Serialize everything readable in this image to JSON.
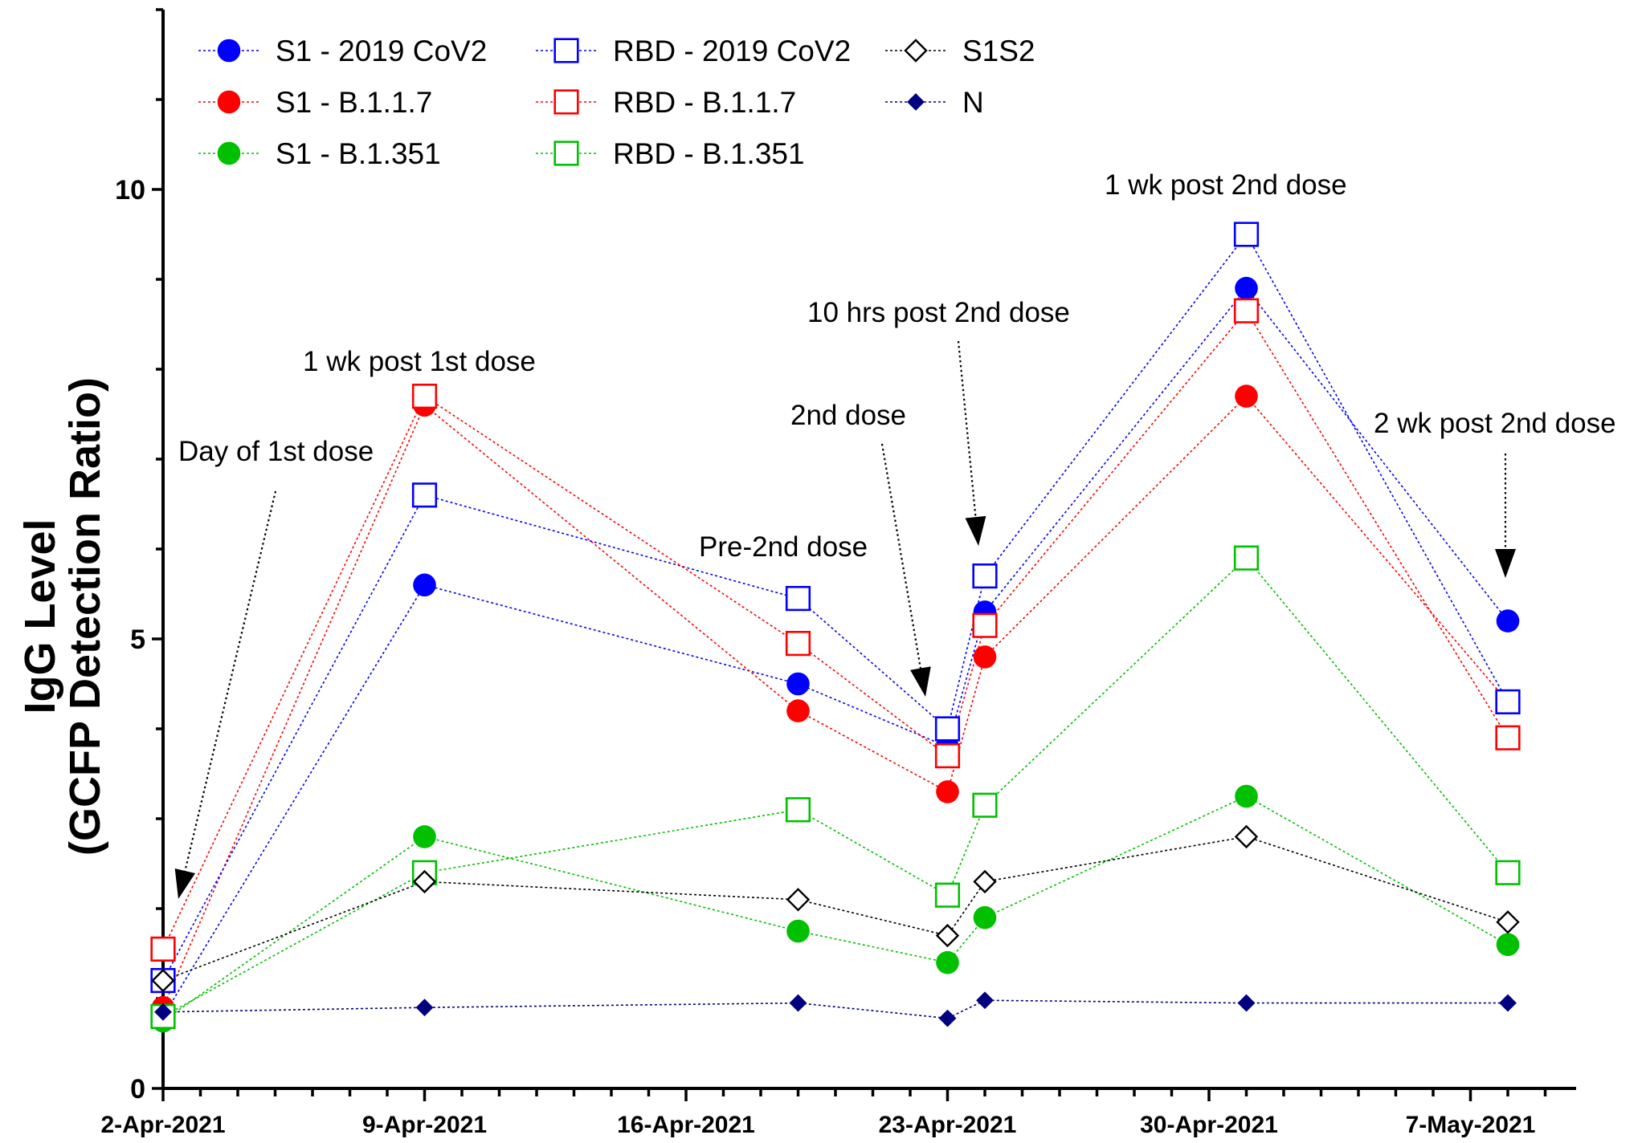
{
  "chart_data": {
    "type": "line",
    "xlabel": "",
    "ylabel_line1": "IgG Level",
    "ylabel_line2": "(GCFP Detection Ratio)",
    "ylim": [
      0,
      12
    ],
    "yticks": [
      0,
      5,
      10
    ],
    "x_axis_range": [
      "2-Apr-2021",
      "10-May-2021"
    ],
    "x_ticks": [
      "2-Apr-2021",
      "9-Apr-2021",
      "16-Apr-2021",
      "23-Apr-2021",
      "30-Apr-2021",
      "7-May-2021"
    ],
    "x_dates": [
      "2-Apr-2021",
      "9-Apr-2021",
      "19-Apr-2021",
      "23-Apr-2021",
      "24-Apr-2021",
      "1-May-2021",
      "8-May-2021"
    ],
    "grid": false,
    "legend_position": "top-left",
    "series": [
      {
        "name": "S1 - 2019 CoV2",
        "color": "#0000ff",
        "marker": "circle-filled",
        "values": [
          0.8,
          5.6,
          4.5,
          3.8,
          5.3,
          8.9,
          5.2
        ]
      },
      {
        "name": "S1 - B.1.1.7",
        "color": "#ff0000",
        "marker": "circle-filled",
        "values": [
          0.9,
          7.6,
          4.2,
          3.3,
          4.8,
          7.7,
          4.3
        ]
      },
      {
        "name": "S1 - B.1.351",
        "color": "#00c000",
        "marker": "circle-filled",
        "values": [
          0.75,
          2.8,
          1.75,
          1.4,
          1.9,
          3.25,
          1.6
        ]
      },
      {
        "name": "RBD - 2019 CoV2",
        "color": "#0000ff",
        "marker": "square-open",
        "values": [
          1.2,
          6.6,
          5.45,
          4.0,
          5.7,
          9.5,
          4.3
        ]
      },
      {
        "name": "RBD - B.1.1.7",
        "color": "#ff0000",
        "marker": "square-open",
        "values": [
          1.55,
          7.7,
          4.95,
          3.7,
          5.15,
          8.65,
          3.9
        ]
      },
      {
        "name": "RBD - B.1.351",
        "color": "#00c000",
        "marker": "square-open",
        "values": [
          0.8,
          2.4,
          3.1,
          2.15,
          3.15,
          5.9,
          2.4
        ]
      },
      {
        "name": "S1S2",
        "color": "#000000",
        "marker": "diamond-open",
        "values": [
          1.2,
          2.3,
          2.1,
          1.7,
          2.3,
          2.8,
          1.85
        ]
      },
      {
        "name": "N",
        "color": "#000080",
        "marker": "diamond-filled",
        "values": [
          0.85,
          0.9,
          0.95,
          0.78,
          0.98,
          0.95,
          0.95
        ]
      }
    ],
    "annotations": [
      {
        "text": "Day of 1st dose",
        "date": "2-Apr-2021",
        "y": 0.8
      },
      {
        "text": "1 wk post 1st dose",
        "date": "9-Apr-2021",
        "y": 7.7
      },
      {
        "text": "Pre-2nd dose",
        "date": "19-Apr-2021",
        "y": 5.45
      },
      {
        "text": "2nd dose",
        "date": "23-Apr-2021",
        "y": 4.0
      },
      {
        "text": "10 hrs post 2nd dose",
        "date": "24-Apr-2021",
        "y": 5.7
      },
      {
        "text": "1 wk post 2nd dose",
        "date": "1-May-2021",
        "y": 9.5
      },
      {
        "text": "2 wk post 2nd dose",
        "date": "8-May-2021",
        "y": 5.2
      }
    ]
  }
}
